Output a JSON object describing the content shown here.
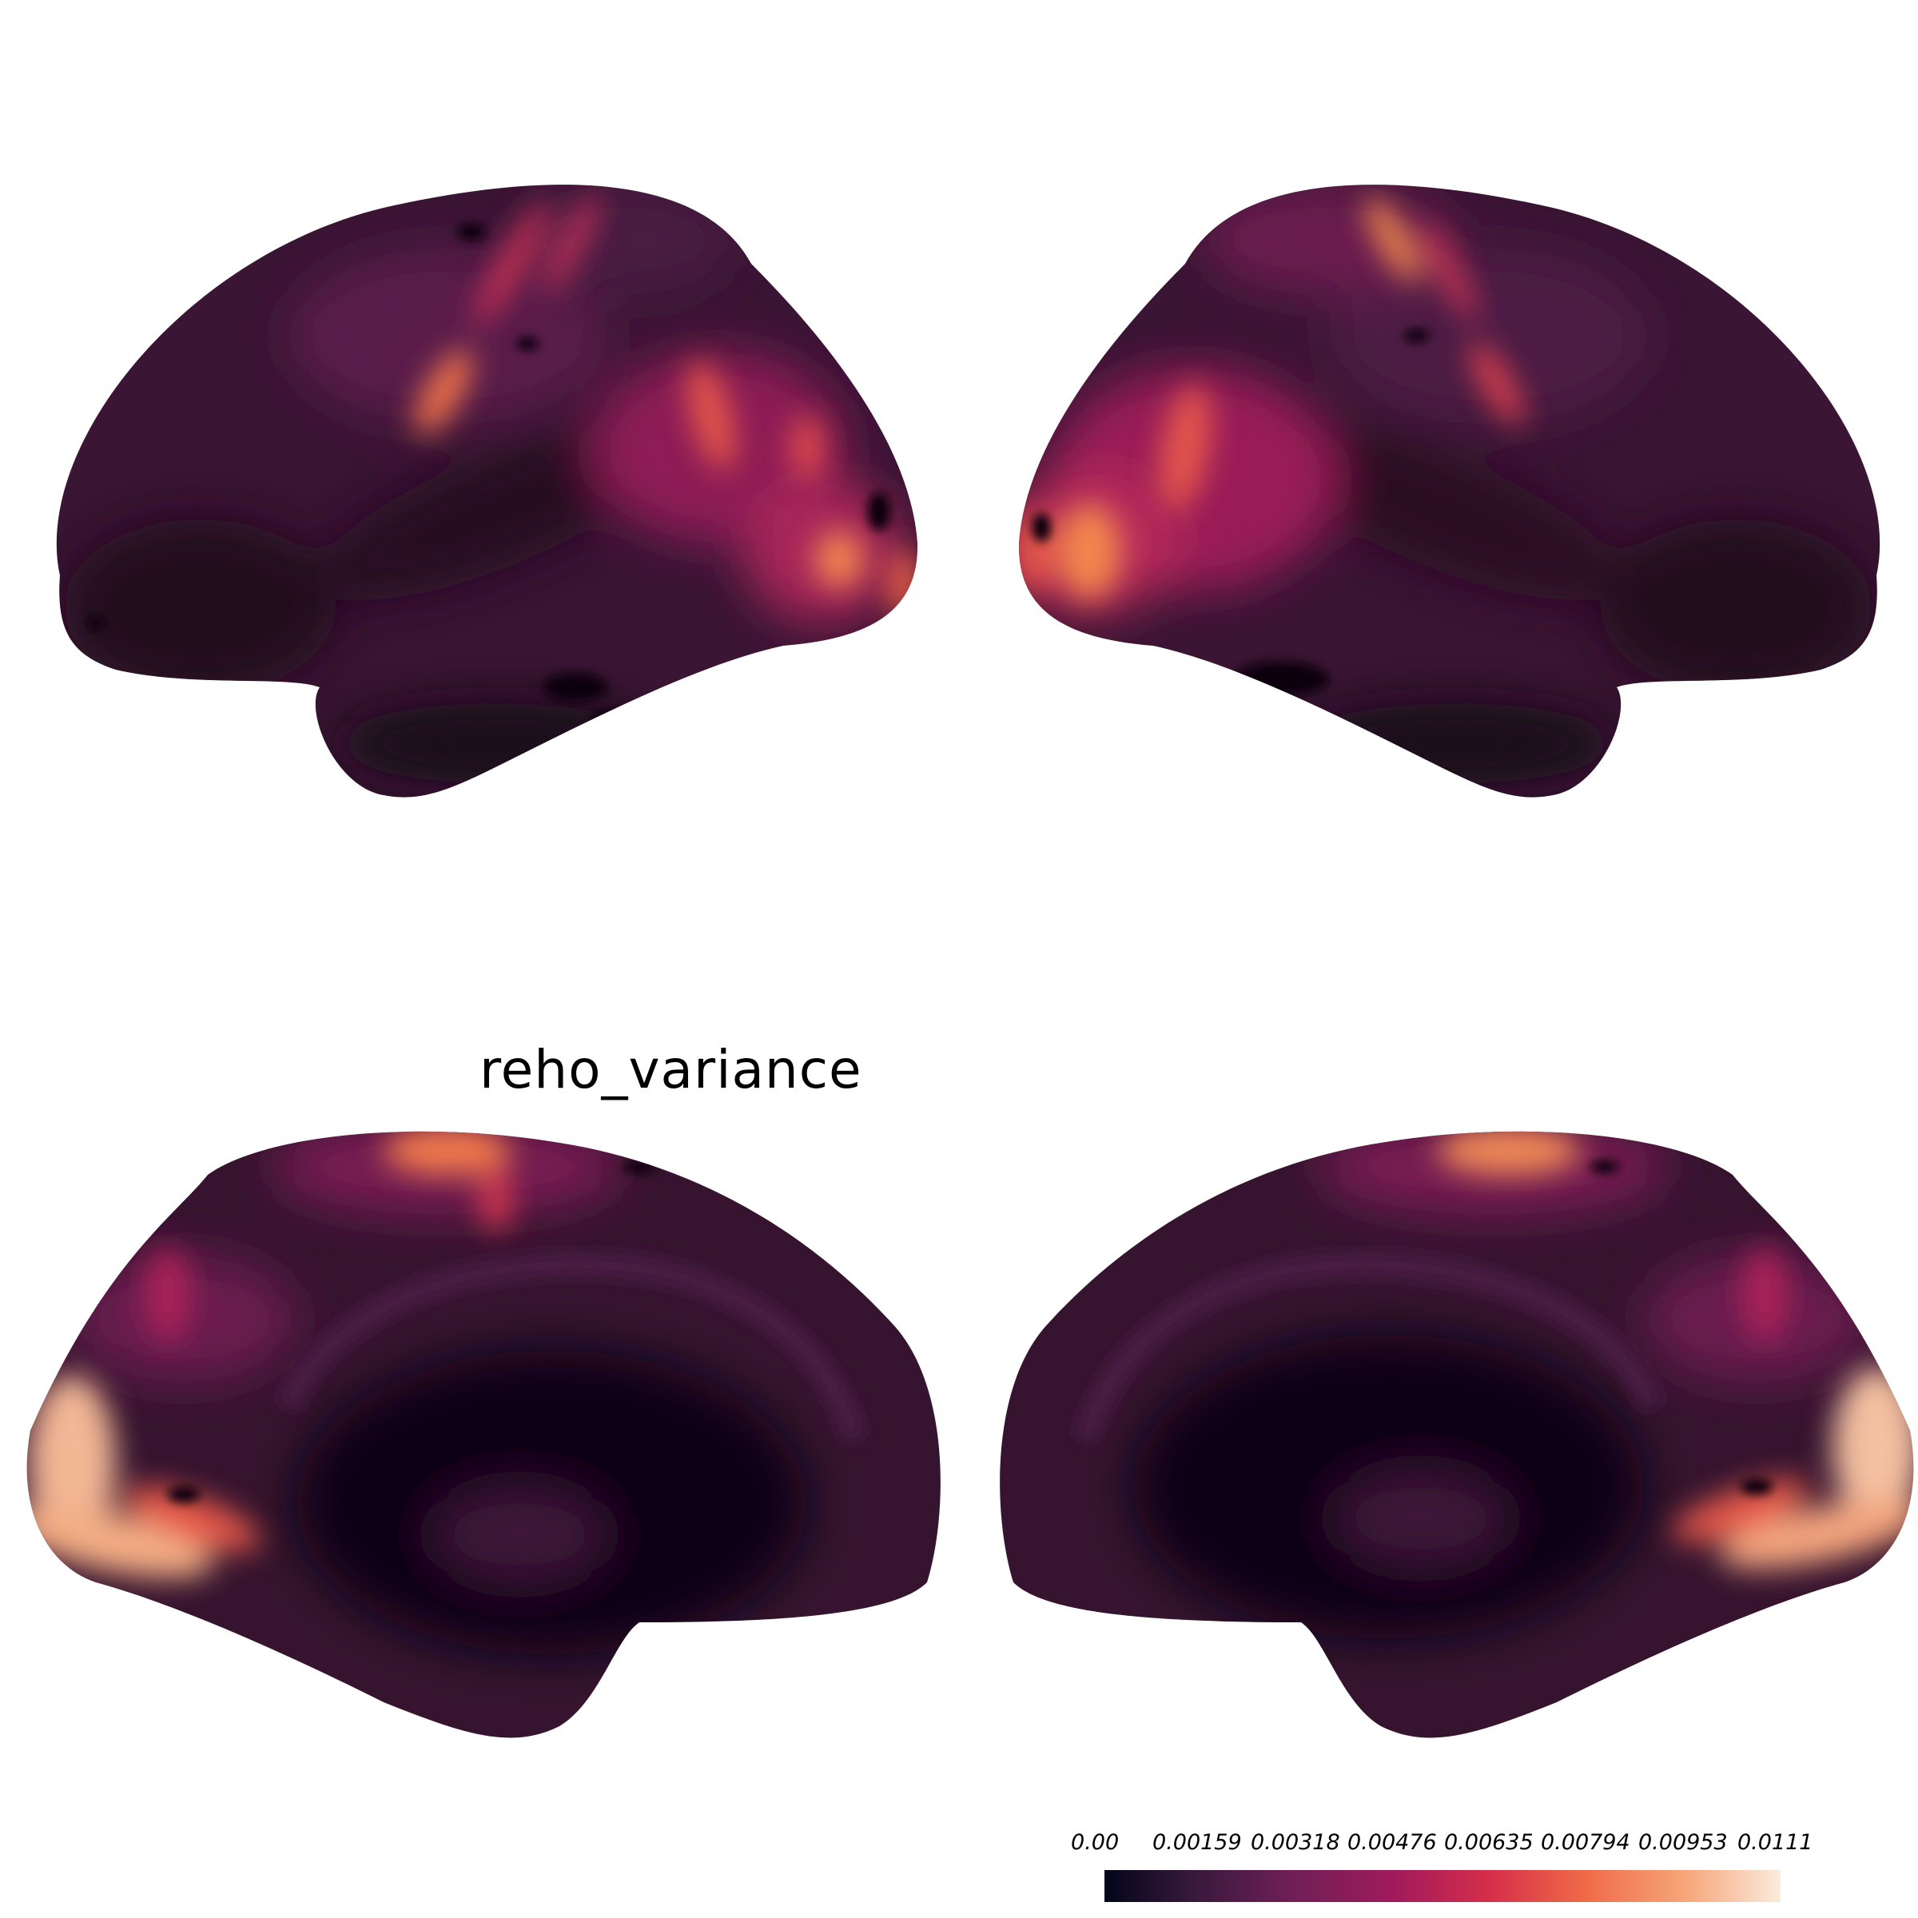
{
  "figure": {
    "title": "reho_variance",
    "views": [
      {
        "id": "left-lateral",
        "label": ""
      },
      {
        "id": "right-lateral",
        "label": ""
      },
      {
        "id": "left-medial",
        "label": ""
      },
      {
        "id": "right-medial",
        "label": ""
      }
    ]
  },
  "colorbar": {
    "colormap": "rocket",
    "colors": [
      "#03051a",
      "#3b1a3e",
      "#701f57",
      "#a11a5b",
      "#d62e4a",
      "#ef6a47",
      "#f6a67a",
      "#faebdd"
    ],
    "ticks": [
      "0.00",
      "0.00159",
      "0.00318",
      "0.00476",
      "0.00635",
      "0.00794",
      "0.00953",
      "0.0111"
    ],
    "min": 0.0,
    "max": 0.0111
  }
}
